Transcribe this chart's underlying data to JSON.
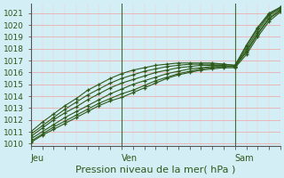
{
  "title": "",
  "xlabel": "Pression niveau de la mer( hPa )",
  "ylabel": "",
  "bg_color": "#d4eef5",
  "grid_color_major": "#f0a0a0",
  "grid_color_minor": "#f5c8c8",
  "line_color": "#2d5a1b",
  "ylim": [
    1009.8,
    1021.8
  ],
  "xlim": [
    0,
    66
  ],
  "xtick_positions": [
    0,
    24,
    54
  ],
  "xtick_labels": [
    "Jeu",
    "Ven",
    "Sam"
  ],
  "ytick_positions": [
    1010,
    1011,
    1012,
    1013,
    1014,
    1015,
    1016,
    1017,
    1018,
    1019,
    1020,
    1021
  ],
  "vline_positions": [
    24,
    54
  ],
  "series": [
    {
      "x": [
        0,
        3,
        6,
        9,
        12,
        15,
        18,
        21,
        24,
        27,
        30,
        33,
        36,
        39,
        42,
        45,
        48,
        51,
        54,
        57,
        60,
        63,
        66
      ],
      "y": [
        1010.1,
        1010.7,
        1011.2,
        1011.7,
        1012.2,
        1012.7,
        1013.2,
        1013.6,
        1013.9,
        1014.3,
        1014.7,
        1015.1,
        1015.5,
        1015.8,
        1016.0,
        1016.2,
        1016.3,
        1016.4,
        1016.4,
        1017.5,
        1019.0,
        1020.3,
        1021.1
      ]
    },
    {
      "x": [
        0,
        3,
        6,
        9,
        12,
        15,
        18,
        21,
        24,
        27,
        30,
        33,
        36,
        39,
        42,
        45,
        48,
        51,
        54,
        57,
        60,
        63,
        66
      ],
      "y": [
        1010.2,
        1010.8,
        1011.4,
        1011.9,
        1012.4,
        1012.9,
        1013.4,
        1013.8,
        1014.2,
        1014.5,
        1014.9,
        1015.3,
        1015.6,
        1015.9,
        1016.1,
        1016.3,
        1016.4,
        1016.5,
        1016.5,
        1017.7,
        1019.2,
        1020.5,
        1021.2
      ]
    },
    {
      "x": [
        0,
        3,
        6,
        9,
        12,
        15,
        18,
        21,
        24,
        27,
        30,
        33,
        36,
        39,
        42,
        45,
        48,
        51,
        54,
        57,
        60,
        63,
        66
      ],
      "y": [
        1010.4,
        1011.0,
        1011.6,
        1012.2,
        1012.7,
        1013.2,
        1013.7,
        1014.2,
        1014.6,
        1015.0,
        1015.3,
        1015.6,
        1015.9,
        1016.1,
        1016.3,
        1016.4,
        1016.5,
        1016.5,
        1016.5,
        1017.8,
        1019.3,
        1020.6,
        1021.3
      ]
    },
    {
      "x": [
        0,
        3,
        6,
        9,
        12,
        15,
        18,
        21,
        24,
        27,
        30,
        33,
        36,
        39,
        42,
        45,
        48,
        51,
        54,
        57,
        60,
        63,
        66
      ],
      "y": [
        1010.6,
        1011.3,
        1012.0,
        1012.6,
        1013.1,
        1013.7,
        1014.2,
        1014.7,
        1015.1,
        1015.4,
        1015.7,
        1016.0,
        1016.2,
        1016.4,
        1016.5,
        1016.6,
        1016.6,
        1016.6,
        1016.5,
        1018.0,
        1019.5,
        1020.8,
        1021.4
      ]
    },
    {
      "x": [
        0,
        3,
        6,
        9,
        12,
        15,
        18,
        21,
        24,
        27,
        30,
        33,
        36,
        39,
        42,
        45,
        48,
        51,
        54,
        57,
        60,
        63,
        66
      ],
      "y": [
        1010.8,
        1011.5,
        1012.2,
        1012.9,
        1013.5,
        1014.1,
        1014.6,
        1015.1,
        1015.5,
        1015.8,
        1016.1,
        1016.3,
        1016.5,
        1016.6,
        1016.7,
        1016.7,
        1016.7,
        1016.7,
        1016.6,
        1018.2,
        1019.7,
        1020.9,
        1021.5
      ]
    },
    {
      "x": [
        0,
        3,
        6,
        9,
        12,
        15,
        18,
        21,
        24,
        27,
        30,
        33,
        36,
        39,
        42,
        45,
        48,
        51,
        54,
        57,
        60,
        63,
        66
      ],
      "y": [
        1011.0,
        1011.8,
        1012.5,
        1013.2,
        1013.8,
        1014.5,
        1015.0,
        1015.5,
        1015.9,
        1016.2,
        1016.4,
        1016.6,
        1016.7,
        1016.8,
        1016.8,
        1016.8,
        1016.8,
        1016.7,
        1016.6,
        1018.3,
        1019.8,
        1021.0,
        1021.5
      ]
    }
  ]
}
